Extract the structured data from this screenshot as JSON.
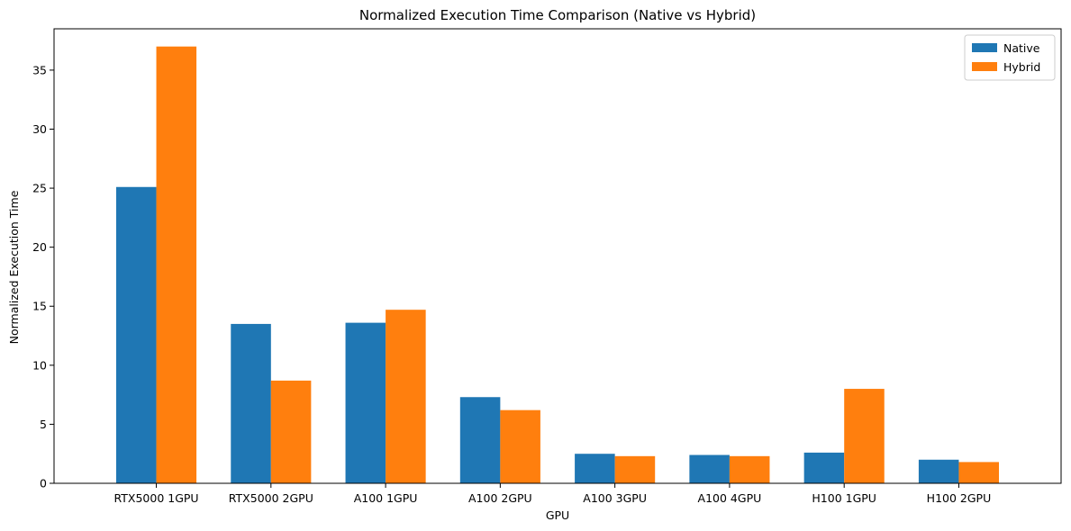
{
  "chart_data": {
    "type": "bar",
    "title": "Normalized Execution Time Comparison (Native vs Hybrid)",
    "xlabel": "GPU",
    "ylabel": "Normalized Execution Time",
    "categories": [
      "RTX5000 1GPU",
      "RTX5000 2GPU",
      "A100 1GPU",
      "A100 2GPU",
      "A100 3GPU",
      "A100 4GPU",
      "H100 1GPU",
      "H100 2GPU"
    ],
    "series": [
      {
        "name": "Native",
        "color": "#1f77b4",
        "values": [
          25.1,
          13.5,
          13.6,
          7.3,
          2.5,
          2.4,
          2.6,
          2.0
        ]
      },
      {
        "name": "Hybrid",
        "color": "#ff7f0e",
        "values": [
          37.0,
          8.7,
          14.7,
          6.2,
          2.3,
          2.3,
          8.0,
          1.8
        ]
      }
    ],
    "ylim": [
      0,
      38.5
    ],
    "yticks": [
      0,
      5,
      10,
      15,
      20,
      25,
      30,
      35
    ],
    "grid": false,
    "legend_position": "top-right"
  }
}
